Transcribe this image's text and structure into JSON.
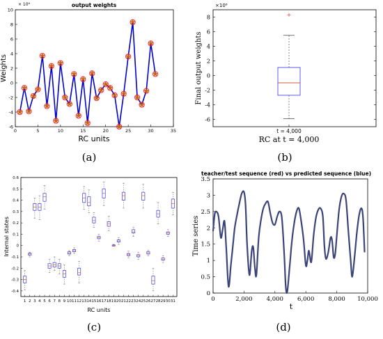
{
  "colors": {
    "line_blue": "#0000cc",
    "star_orange": "#cc6600",
    "marker_red": "#ff2020",
    "box_blue": "#4a4af0",
    "median_red": "#d45a3a",
    "whisker": "#555555",
    "series_navy": "#3a4478",
    "axis": "#000000",
    "box_c": "#3c3cdc"
  },
  "chart_data": [
    {
      "panel_label": "(a)",
      "type": "line",
      "title": "output weights",
      "xlabel": "RC units",
      "ylabel": "Weights",
      "exponent_label": "× 10⁶",
      "xlim": [
        0,
        35
      ],
      "ylim": [
        -6,
        10
      ],
      "xticks": [
        "0",
        "5",
        "10",
        "15",
        "20",
        "25",
        "30",
        "35"
      ],
      "yticks": [
        "-6",
        "-4",
        "-2",
        "0",
        "2",
        "4",
        "6",
        "8",
        "10"
      ],
      "grid": false,
      "markers": "red-circle-with-star",
      "x": [
        1,
        2,
        3,
        4,
        5,
        6,
        7,
        8,
        9,
        10,
        11,
        12,
        13,
        14,
        15,
        16,
        17,
        18,
        19,
        20,
        21,
        22,
        23,
        24,
        25,
        26,
        27,
        28,
        29,
        30,
        31
      ],
      "values": [
        -4.0,
        -0.7,
        -3.9,
        -1.8,
        -0.9,
        3.7,
        -3.2,
        2.3,
        -5.2,
        2.7,
        -2.0,
        -2.9,
        1.2,
        -4.5,
        0.5,
        -5.5,
        1.3,
        -2.1,
        -1.0,
        -0.2,
        -0.7,
        -1.7,
        -6.0,
        -1.5,
        3.6,
        8.3,
        -2.0,
        -3.0,
        -1.1,
        5.4,
        1.2
      ]
    },
    {
      "panel_label": "(b)",
      "type": "box",
      "xlabel": "RC at t = 4,000",
      "ylabel": "Final output weights",
      "exponent_label": "×10⁶",
      "category": "t = 4,000",
      "ylim": [
        -7,
        9
      ],
      "yticks": [
        "-6",
        "-4",
        "-2",
        "0",
        "2",
        "4",
        "6",
        "8"
      ],
      "box": {
        "min": -5.9,
        "q1": -2.7,
        "median": -1.0,
        "q3": 1.1,
        "max": 5.5,
        "outliers": [
          8.3
        ]
      }
    },
    {
      "panel_label": "(c)",
      "type": "box",
      "xlabel": "RC units",
      "ylabel": "Internal states",
      "ylim": [
        -0.45,
        0.6
      ],
      "yticks": [
        "-0.4",
        "-0.3",
        "-0.2",
        "-0.1",
        "0",
        "0.1",
        "0.2",
        "0.3",
        "0.4",
        "0.5",
        "0.6"
      ],
      "categories": [
        "1",
        "2",
        "3",
        "4",
        "5",
        "6",
        "7",
        "8",
        "9",
        "10",
        "11",
        "12",
        "13",
        "14",
        "15",
        "16",
        "17",
        "18",
        "19",
        "20",
        "21",
        "22",
        "23",
        "24",
        "25",
        "26",
        "27",
        "28",
        "29",
        "30",
        "31"
      ],
      "boxes": [
        {
          "min": -0.39,
          "q1": -0.33,
          "median": -0.3,
          "q3": -0.27,
          "max": -0.22
        },
        {
          "min": -0.1,
          "q1": -0.085,
          "median": -0.075,
          "q3": -0.068,
          "max": -0.06
        },
        {
          "min": 0.24,
          "q1": 0.31,
          "median": 0.34,
          "q3": 0.37,
          "max": 0.42
        },
        {
          "min": 0.23,
          "q1": 0.31,
          "median": 0.34,
          "q3": 0.37,
          "max": 0.44
        },
        {
          "min": 0.32,
          "q1": 0.39,
          "median": 0.43,
          "q3": 0.46,
          "max": 0.53
        },
        {
          "min": -0.24,
          "q1": -0.2,
          "median": -0.18,
          "q3": -0.16,
          "max": -0.12
        },
        {
          "min": -0.22,
          "q1": -0.19,
          "median": -0.17,
          "q3": -0.15,
          "max": -0.1
        },
        {
          "min": -0.25,
          "q1": -0.2,
          "median": -0.18,
          "q3": -0.16,
          "max": -0.12
        },
        {
          "min": -0.34,
          "q1": -0.28,
          "median": -0.25,
          "q3": -0.22,
          "max": -0.17
        },
        {
          "min": -0.09,
          "q1": -0.075,
          "median": -0.065,
          "q3": -0.055,
          "max": -0.045
        },
        {
          "min": -0.07,
          "q1": -0.055,
          "median": -0.045,
          "q3": -0.035,
          "max": -0.02
        },
        {
          "min": -0.33,
          "q1": -0.26,
          "median": -0.24,
          "q3": -0.2,
          "max": -0.14
        },
        {
          "min": 0.32,
          "q1": 0.38,
          "median": 0.42,
          "q3": 0.46,
          "max": 0.52
        },
        {
          "min": 0.29,
          "q1": 0.35,
          "median": 0.38,
          "q3": 0.43,
          "max": 0.49
        },
        {
          "min": 0.16,
          "q1": 0.2,
          "median": 0.22,
          "q3": 0.25,
          "max": 0.29
        },
        {
          "min": 0.04,
          "q1": 0.06,
          "median": 0.07,
          "q3": 0.08,
          "max": 0.1
        },
        {
          "min": 0.35,
          "q1": 0.42,
          "median": 0.46,
          "q3": 0.5,
          "max": 0.56
        },
        {
          "min": 0.13,
          "q1": 0.17,
          "median": 0.19,
          "q3": 0.21,
          "max": 0.26
        },
        {
          "min": -0.005,
          "q1": 0.0,
          "median": 0.002,
          "q3": 0.005,
          "max": 0.01
        },
        {
          "min": 0.01,
          "q1": 0.03,
          "median": 0.04,
          "q3": 0.05,
          "max": 0.07
        },
        {
          "min": 0.33,
          "q1": 0.4,
          "median": 0.44,
          "q3": 0.47,
          "max": 0.55
        },
        {
          "min": -0.11,
          "q1": -0.09,
          "median": -0.08,
          "q3": -0.07,
          "max": -0.05
        },
        {
          "min": 0.08,
          "q1": 0.11,
          "median": 0.12,
          "q3": 0.14,
          "max": 0.16
        },
        {
          "min": -0.12,
          "q1": -0.1,
          "median": -0.09,
          "q3": -0.08,
          "max": -0.06
        },
        {
          "min": 0.33,
          "q1": 0.4,
          "median": 0.44,
          "q3": 0.47,
          "max": 0.54
        },
        {
          "min": -0.09,
          "q1": -0.075,
          "median": -0.065,
          "q3": -0.055,
          "max": -0.04
        },
        {
          "min": -0.4,
          "q1": -0.34,
          "median": -0.31,
          "q3": -0.27,
          "max": -0.2
        },
        {
          "min": 0.19,
          "q1": 0.25,
          "median": 0.28,
          "q3": 0.31,
          "max": 0.38
        },
        {
          "min": -0.15,
          "q1": -0.13,
          "median": -0.12,
          "q3": -0.11,
          "max": -0.09
        },
        {
          "min": 0.08,
          "q1": 0.1,
          "median": 0.11,
          "q3": 0.12,
          "max": 0.14
        },
        {
          "min": 0.27,
          "q1": 0.33,
          "median": 0.37,
          "q3": 0.41,
          "max": 0.47
        }
      ]
    },
    {
      "panel_label": "(d)",
      "type": "line",
      "title": "teacher/test sequence (red) vs predicted sequence (blue)",
      "xlabel": "t",
      "ylabel": "Time series",
      "xlim": [
        0,
        10000
      ],
      "ylim": [
        0,
        3.5
      ],
      "xticks": [
        "0",
        "2,000",
        "4,000",
        "6,000",
        "8,000",
        "10,000"
      ],
      "yticks": [
        "0",
        "0.5",
        "1",
        "1.5",
        "2",
        "2.5",
        "3",
        "3.5"
      ],
      "x": [
        0,
        100,
        200,
        350,
        500,
        620,
        740,
        850,
        1000,
        1150,
        1280,
        1400,
        1550,
        1700,
        1850,
        2000,
        2100,
        2200,
        2350,
        2500,
        2600,
        2700,
        2800,
        2950,
        3100,
        3250,
        3400,
        3550,
        3700,
        3850,
        4000,
        4150,
        4300,
        4450,
        4600,
        4700,
        4800,
        4950,
        5100,
        5250,
        5400,
        5550,
        5700,
        5850,
        6000,
        6100,
        6200,
        6350,
        6500,
        6650,
        6800,
        6950,
        7100,
        7200,
        7300,
        7450,
        7600,
        7700,
        7800,
        7900,
        8000,
        8150,
        8300,
        8450,
        8600,
        8750,
        8900,
        9000,
        9150,
        9300,
        9450,
        9600,
        9700,
        9800
      ],
      "values": [
        1.9,
        2.4,
        2.5,
        2.35,
        1.7,
        1.95,
        2.2,
        1.4,
        0.2,
        0.85,
        1.45,
        2.0,
        2.4,
        2.75,
        3.05,
        3.1,
        2.7,
        1.5,
        0.55,
        1.3,
        1.4,
        0.8,
        0.55,
        1.7,
        2.25,
        2.6,
        2.75,
        2.8,
        2.45,
        2.15,
        2.1,
        2.35,
        2.5,
        2.3,
        1.2,
        0.2,
        0.05,
        0.8,
        1.6,
        2.15,
        2.5,
        2.6,
        2.2,
        1.65,
        0.85,
        1.0,
        1.3,
        0.95,
        1.75,
        2.3,
        2.55,
        2.6,
        2.35,
        1.45,
        1.05,
        1.25,
        1.7,
        1.6,
        1.1,
        1.2,
        1.75,
        2.55,
        2.95,
        3.05,
        2.85,
        1.9,
        1.0,
        0.5,
        1.1,
        1.85,
        2.4,
        2.6,
        2.3,
        1.25
      ]
    }
  ]
}
